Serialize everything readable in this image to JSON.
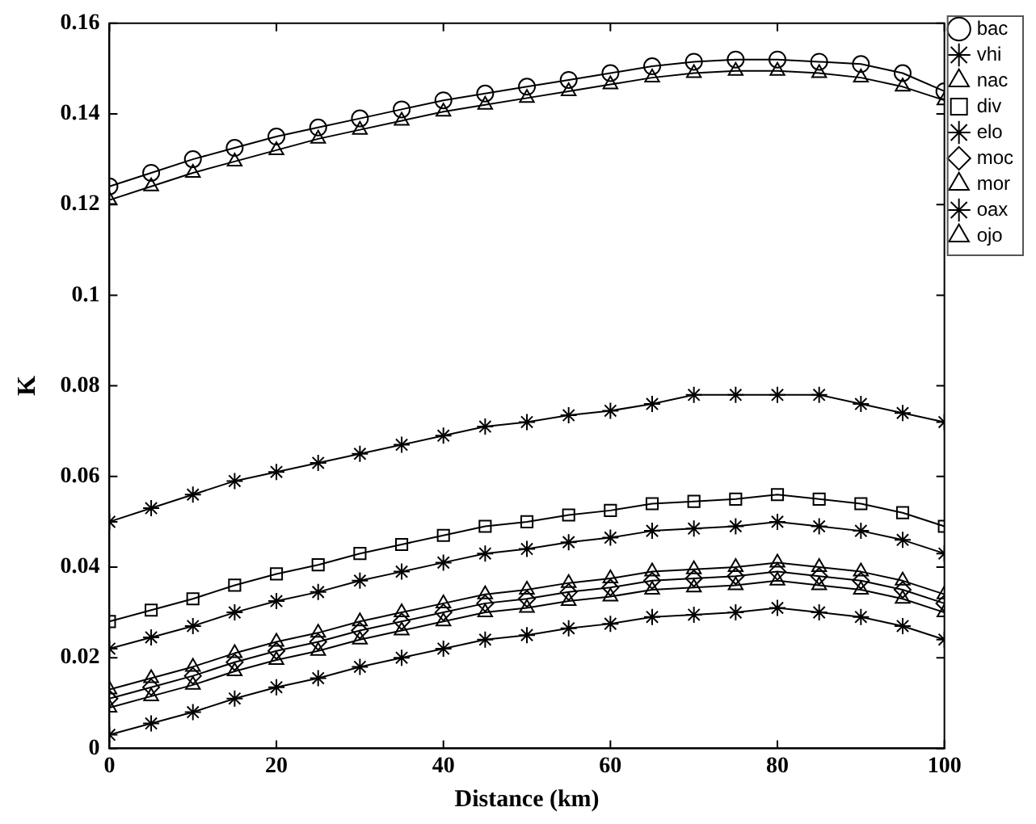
{
  "chart_data": {
    "type": "line",
    "xlabel": "Distance (km)",
    "ylabel": "K",
    "x": [
      0,
      5,
      10,
      15,
      20,
      25,
      30,
      35,
      40,
      45,
      50,
      55,
      60,
      65,
      70,
      75,
      80,
      85,
      90,
      95,
      100
    ],
    "xlim": [
      0,
      100
    ],
    "xticks": [
      0,
      20,
      40,
      60,
      80,
      100
    ],
    "ylim": [
      0,
      0.16
    ],
    "yticks": [
      0,
      0.02,
      0.04,
      0.06,
      0.08,
      0.1,
      0.12,
      0.14,
      0.16
    ],
    "grid": false,
    "legend": "top right",
    "line_style": "solid",
    "series": [
      {
        "name": "bac",
        "color": "#000000",
        "marker": "circle",
        "values": [
          0.124,
          0.127,
          0.13,
          0.1325,
          0.135,
          0.137,
          0.139,
          0.141,
          0.143,
          0.1445,
          0.146,
          0.1475,
          0.149,
          0.1505,
          0.1515,
          0.152,
          0.152,
          0.1515,
          0.151,
          0.149,
          0.145
        ]
      },
      {
        "name": "vhi",
        "color": "#000000",
        "marker": "cross",
        "values": [
          0.022,
          0.0245,
          0.027,
          0.03,
          0.0325,
          0.0345,
          0.037,
          0.039,
          0.041,
          0.043,
          0.044,
          0.0455,
          0.0465,
          0.048,
          0.0485,
          0.049,
          0.05,
          0.049,
          0.048,
          0.046,
          0.043
        ]
      },
      {
        "name": "nac",
        "color": "#000000",
        "marker": "triangle",
        "values": [
          0.013,
          0.0155,
          0.018,
          0.021,
          0.0235,
          0.0255,
          0.028,
          0.03,
          0.032,
          0.034,
          0.035,
          0.0365,
          0.0375,
          0.039,
          0.0395,
          0.04,
          0.041,
          0.04,
          0.039,
          0.037,
          0.034
        ]
      },
      {
        "name": "div",
        "color": "#000000",
        "marker": "square",
        "values": [
          0.028,
          0.0305,
          0.033,
          0.036,
          0.0385,
          0.0405,
          0.043,
          0.045,
          0.047,
          0.049,
          0.05,
          0.0515,
          0.0525,
          0.054,
          0.0545,
          0.055,
          0.056,
          0.055,
          0.054,
          0.052,
          0.049
        ]
      },
      {
        "name": "elo",
        "color": "#000000",
        "marker": "cross",
        "values": [
          0.003,
          0.0055,
          0.008,
          0.011,
          0.0135,
          0.0155,
          0.018,
          0.02,
          0.022,
          0.024,
          0.025,
          0.0265,
          0.0275,
          0.029,
          0.0295,
          0.03,
          0.031,
          0.03,
          0.029,
          0.027,
          0.024
        ]
      },
      {
        "name": "moc",
        "color": "#000000",
        "marker": "diamond",
        "values": [
          0.011,
          0.0135,
          0.016,
          0.019,
          0.0215,
          0.0235,
          0.026,
          0.028,
          0.03,
          0.032,
          0.033,
          0.0345,
          0.0355,
          0.037,
          0.0375,
          0.038,
          0.039,
          0.038,
          0.037,
          0.035,
          0.032
        ]
      },
      {
        "name": "mor",
        "color": "#000000",
        "marker": "triangle",
        "values": [
          0.121,
          0.124,
          0.127,
          0.1295,
          0.132,
          0.1345,
          0.1365,
          0.1385,
          0.1405,
          0.142,
          0.1435,
          0.145,
          0.1465,
          0.148,
          0.149,
          0.1495,
          0.1495,
          0.149,
          0.148,
          0.146,
          0.143
        ]
      },
      {
        "name": "oax",
        "color": "#000000",
        "marker": "cross",
        "values": [
          0.05,
          0.053,
          0.056,
          0.059,
          0.061,
          0.063,
          0.065,
          0.067,
          0.069,
          0.071,
          0.072,
          0.0735,
          0.0745,
          0.076,
          0.078,
          0.078,
          0.078,
          0.078,
          0.076,
          0.074,
          0.072
        ]
      },
      {
        "name": "ojo",
        "color": "#000000",
        "marker": "triangle",
        "values": [
          0.009,
          0.0115,
          0.014,
          0.017,
          0.0195,
          0.0215,
          0.024,
          0.026,
          0.028,
          0.03,
          0.031,
          0.0325,
          0.0335,
          0.035,
          0.0355,
          0.036,
          0.037,
          0.036,
          0.035,
          0.033,
          0.03
        ]
      }
    ]
  }
}
